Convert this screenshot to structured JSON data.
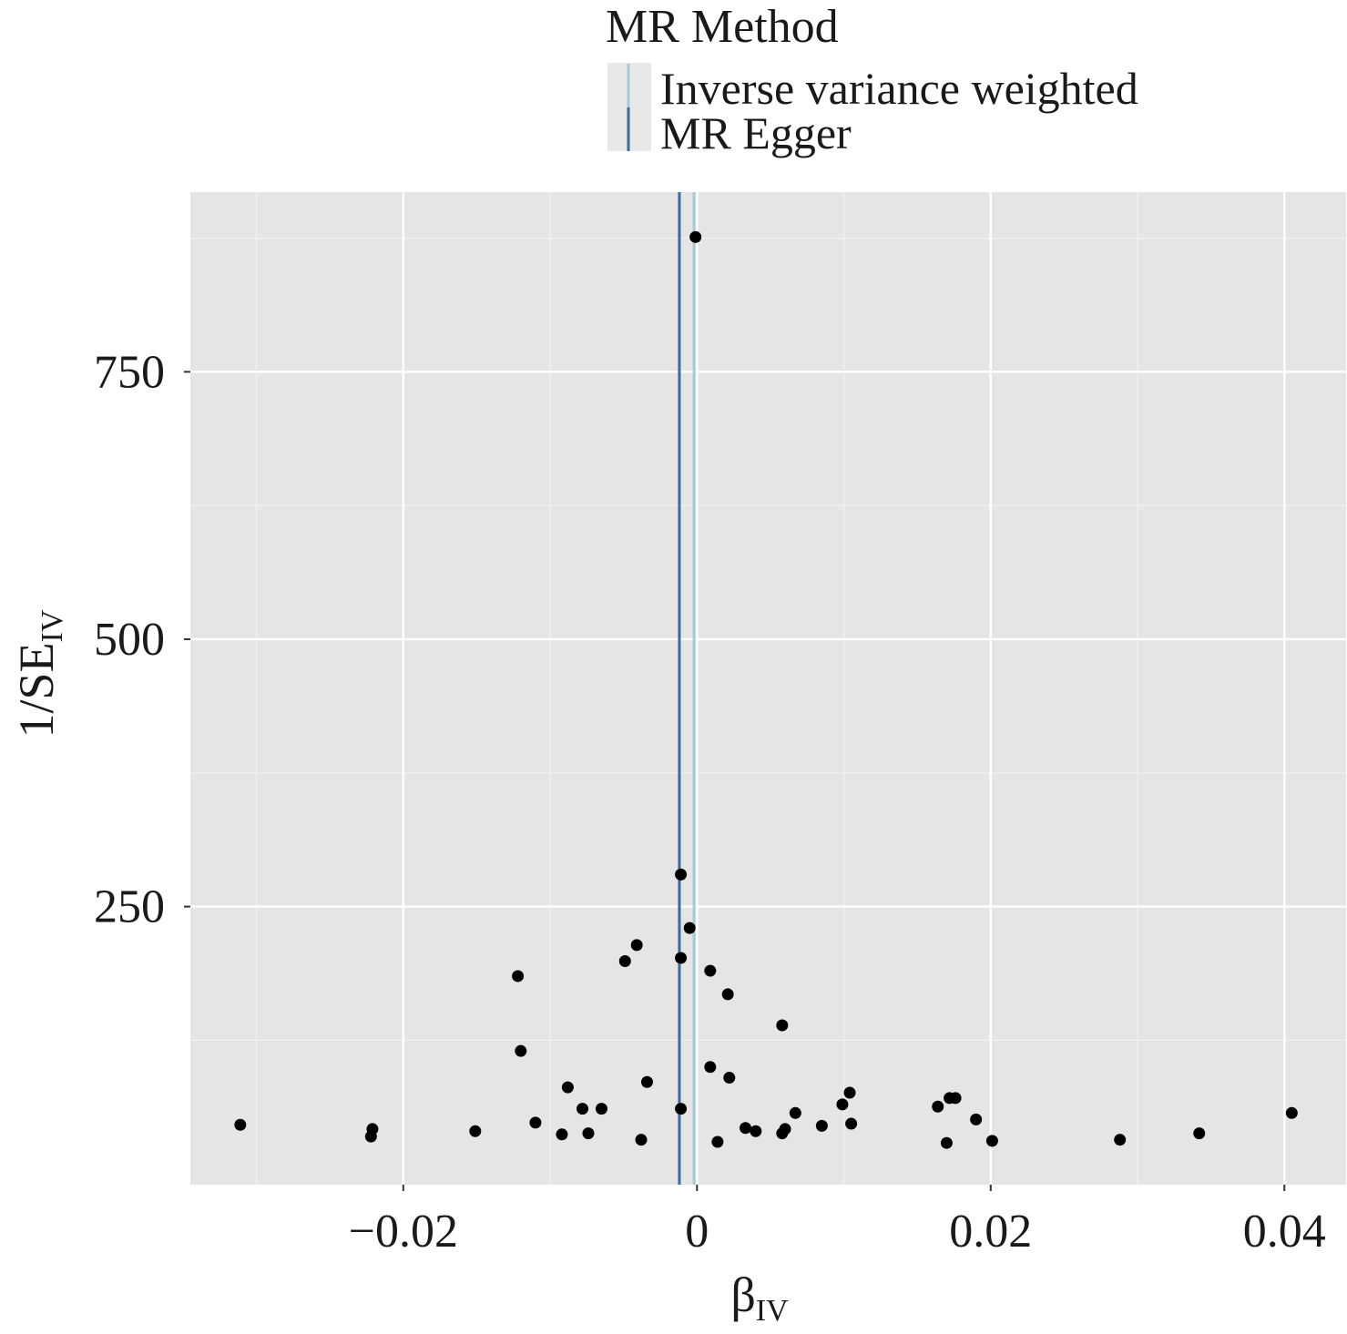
{
  "chart_data": {
    "type": "scatter",
    "title": "",
    "xlabel": "β",
    "xlabel_sub": "IV",
    "ylabel": "1/SE",
    "ylabel_sub": "IV",
    "xlim": [
      -0.0345,
      0.0442
    ],
    "ylim": [
      -10,
      918
    ],
    "x_ticks": [
      -0.02,
      0,
      0.02,
      0.04
    ],
    "x_tick_labels": [
      "−0.02",
      "0",
      "0.02",
      "0.04"
    ],
    "y_ticks": [
      250,
      500,
      750
    ],
    "y_tick_labels": [
      "250",
      "500",
      "750"
    ],
    "grid": true,
    "legend": {
      "title": "MR Method",
      "position": "top",
      "entries": [
        {
          "name": "Inverse variance weighted",
          "color": "#a6c8dd"
        },
        {
          "name": "MR Egger",
          "color": "#3d6a97"
        }
      ]
    },
    "vlines": [
      {
        "method": "Inverse variance weighted",
        "x": -0.0002,
        "color": "#a6c8dd"
      },
      {
        "method": "MR Egger",
        "x": -0.0012,
        "color": "#3d6a97"
      }
    ],
    "points": [
      {
        "x": -0.0001,
        "y": 876
      },
      {
        "x": -0.0011,
        "y": 280
      },
      {
        "x": -0.0005,
        "y": 230
      },
      {
        "x": -0.0041,
        "y": 214
      },
      {
        "x": -0.0049,
        "y": 199
      },
      {
        "x": -0.0011,
        "y": 202
      },
      {
        "x": 0.0009,
        "y": 190
      },
      {
        "x": 0.0021,
        "y": 168
      },
      {
        "x": -0.0122,
        "y": 185
      },
      {
        "x": 0.0058,
        "y": 139
      },
      {
        "x": -0.012,
        "y": 115
      },
      {
        "x": 0.0009,
        "y": 100
      },
      {
        "x": 0.0022,
        "y": 90
      },
      {
        "x": -0.0034,
        "y": 86
      },
      {
        "x": -0.0088,
        "y": 81
      },
      {
        "x": 0.0104,
        "y": 76
      },
      {
        "x": 0.0099,
        "y": 65
      },
      {
        "x": 0.0172,
        "y": 71
      },
      {
        "x": 0.0176,
        "y": 71
      },
      {
        "x": 0.0164,
        "y": 63
      },
      {
        "x": 0.0405,
        "y": 57
      },
      {
        "x": -0.0078,
        "y": 61
      },
      {
        "x": -0.0065,
        "y": 61
      },
      {
        "x": -0.0011,
        "y": 61
      },
      {
        "x": 0.0067,
        "y": 57
      },
      {
        "x": 0.019,
        "y": 51
      },
      {
        "x": 0.0105,
        "y": 47
      },
      {
        "x": 0.0085,
        "y": 45
      },
      {
        "x": -0.011,
        "y": 48
      },
      {
        "x": 0.0033,
        "y": 43
      },
      {
        "x": 0.004,
        "y": 40
      },
      {
        "x": 0.006,
        "y": 42
      },
      {
        "x": 0.0058,
        "y": 38
      },
      {
        "x": -0.0311,
        "y": 46
      },
      {
        "x": -0.0221,
        "y": 42
      },
      {
        "x": -0.0222,
        "y": 35
      },
      {
        "x": -0.0151,
        "y": 40
      },
      {
        "x": -0.0092,
        "y": 37
      },
      {
        "x": -0.0074,
        "y": 38
      },
      {
        "x": -0.0038,
        "y": 32
      },
      {
        "x": 0.0014,
        "y": 30
      },
      {
        "x": 0.017,
        "y": 29
      },
      {
        "x": 0.0201,
        "y": 31
      },
      {
        "x": 0.0288,
        "y": 32
      },
      {
        "x": 0.0342,
        "y": 38
      }
    ]
  }
}
